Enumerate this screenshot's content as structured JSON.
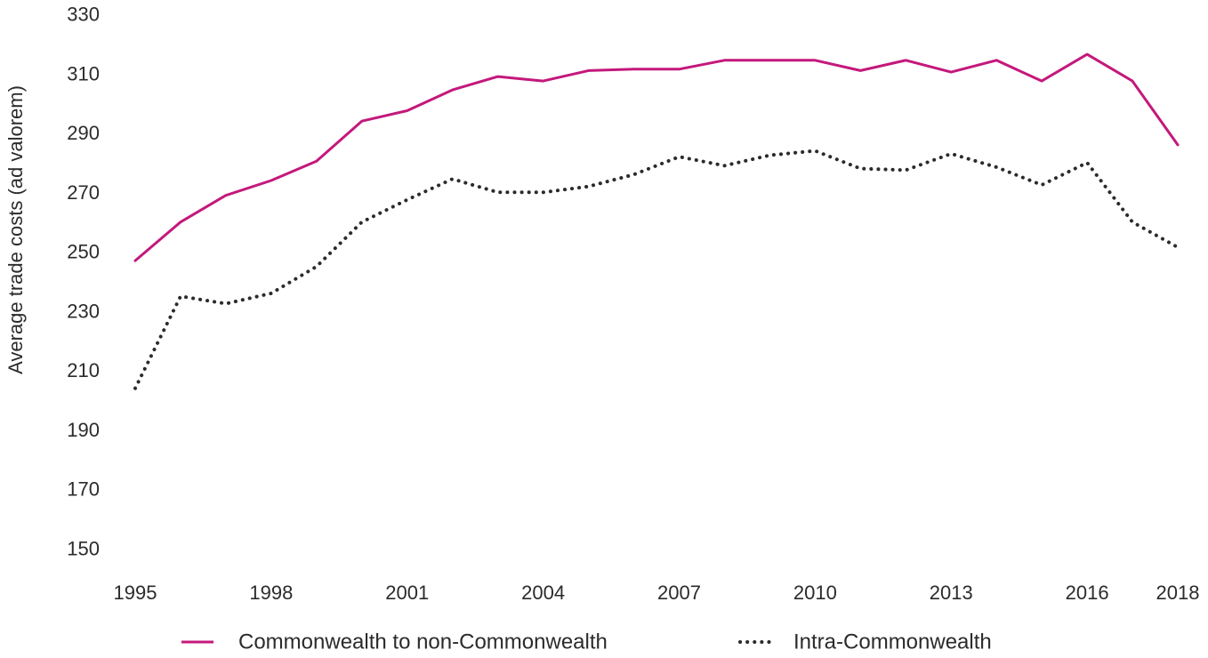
{
  "chart_data": {
    "type": "line",
    "title": "",
    "xlabel": "",
    "ylabel": "Average trade costs (ad valorem)",
    "ylim": [
      150,
      330
    ],
    "yticks": [
      150,
      170,
      190,
      210,
      230,
      250,
      270,
      290,
      310,
      330
    ],
    "xlim": [
      1995,
      2018
    ],
    "xticks": [
      1995,
      1998,
      2001,
      2004,
      2007,
      2010,
      2013,
      2016,
      2018
    ],
    "grid": false,
    "legend_position": "bottom",
    "x": [
      1995,
      1996,
      1997,
      1998,
      1999,
      2000,
      2001,
      2002,
      2003,
      2004,
      2005,
      2006,
      2007,
      2008,
      2009,
      2010,
      2011,
      2012,
      2013,
      2014,
      2015,
      2016,
      2017,
      2018
    ],
    "series": [
      {
        "name": "Commonwealth to non-Commonwealth",
        "color": "#c4187b",
        "style": "solid",
        "values": [
          247,
          260,
          269,
          274,
          280.5,
          294,
          297.5,
          304.5,
          309,
          307.5,
          311,
          311.5,
          311.5,
          314.5,
          314.5,
          314.5,
          311,
          314.5,
          310.5,
          314.5,
          307.5,
          316.5,
          307.5,
          286
        ]
      },
      {
        "name": "Intra-Commonwealth",
        "color": "#2b2b2b",
        "style": "dotted",
        "values": [
          204,
          235,
          232.5,
          236,
          245,
          260,
          267.5,
          274.5,
          270,
          270,
          272,
          276,
          282,
          279,
          282.5,
          284,
          278,
          277.5,
          283,
          278.5,
          272.5,
          280,
          260,
          251.5
        ]
      }
    ]
  }
}
